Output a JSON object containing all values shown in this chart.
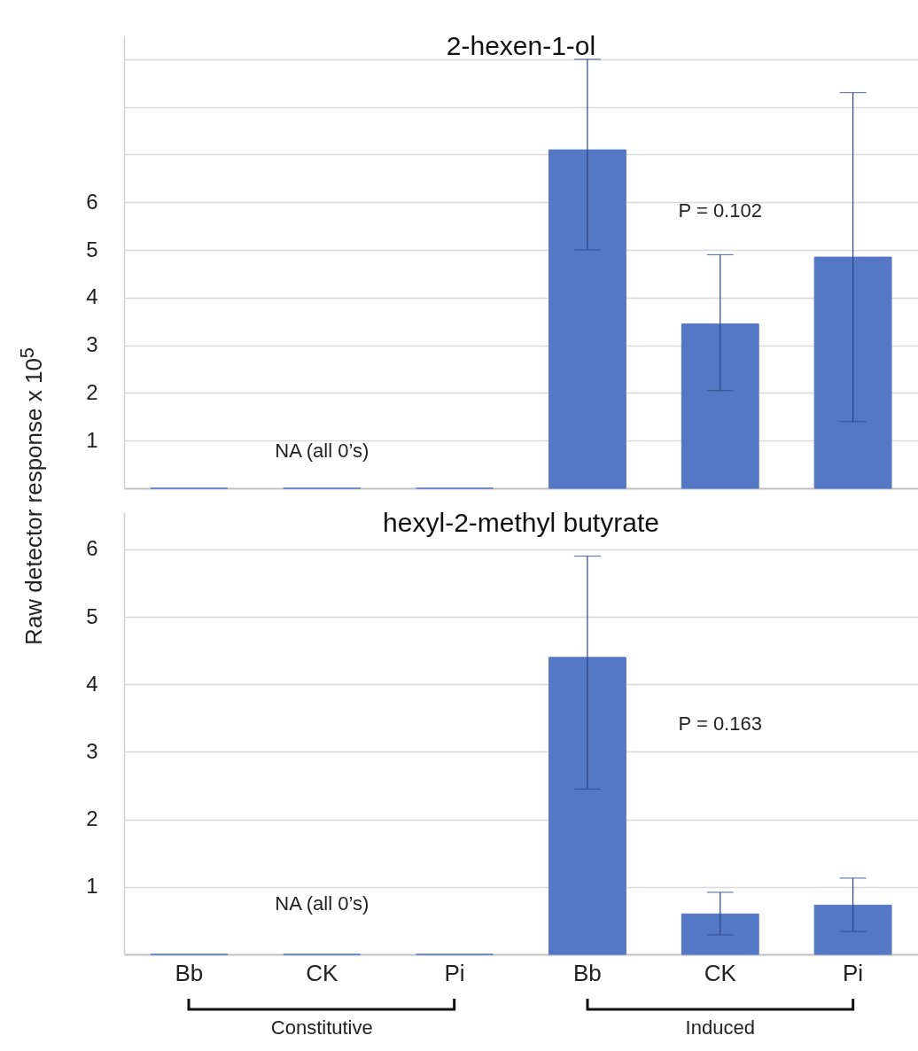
{
  "chart_data": [
    {
      "type": "bar",
      "title": "2-hexen-1-ol",
      "ylabel": "Raw detector response x 10$^{5}$",
      "categories": [
        null,
        null,
        null,
        null,
        null,
        null
      ],
      "values": [
        0,
        0,
        0,
        7.1,
        3.45,
        4.85
      ],
      "errors": [
        null,
        null,
        null,
        [
          5.0,
          9.0
        ],
        [
          2.05,
          4.9
        ],
        [
          1.4,
          8.3
        ]
      ],
      "color": "#5578c6",
      "ylim": [
        0,
        9.5
      ],
      "yticks": [
        1,
        2,
        3,
        4,
        5,
        6,
        {
          "value": 7,
          "label": null
        },
        {
          "value": 8,
          "label": null
        },
        {
          "value": 9,
          "label": null
        }
      ],
      "grid": "y",
      "tick_labels": "y",
      "annotations": [
        "NA (all 0’s)",
        "P = 0.102"
      ]
    },
    {
      "type": "bar",
      "title": "hexyl-2-methyl butyrate",
      "categories": [
        "Bb",
        "CK",
        "Pi",
        "Bb",
        "CK",
        "Pi"
      ],
      "values": [
        0,
        0,
        0,
        4.4,
        0.6,
        0.73
      ],
      "errors": [
        null,
        null,
        null,
        [
          2.45,
          5.9
        ],
        [
          0.29,
          0.92
        ],
        [
          0.34,
          1.13
        ]
      ],
      "color": "#5578c6",
      "ylim": [
        0,
        6.55
      ],
      "yticks": [
        1,
        2,
        3,
        4,
        5,
        6
      ],
      "grid": "y",
      "annotations": [
        "NA (all 0’s)",
        "P = 0.163",
        "Constitutive",
        "Induced"
      ]
    }
  ]
}
